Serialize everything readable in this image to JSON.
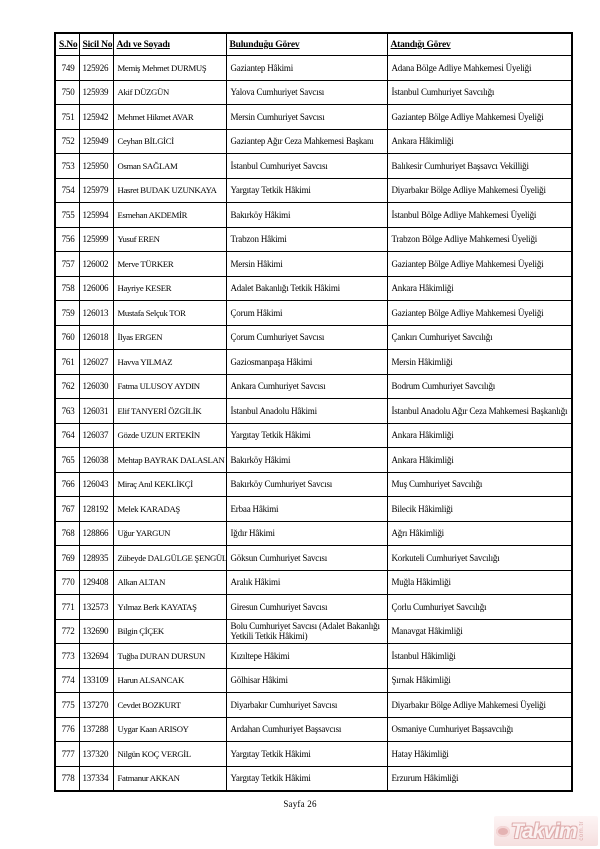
{
  "table": {
    "headers": [
      "S.No",
      "Sicil No",
      "Adı ve Soyadı",
      "Bulunduğu Görev",
      "Atandığı Görev"
    ],
    "rows": [
      {
        "sno": "749",
        "sicil": "125926",
        "name": "Memiş Mehmet DURMUŞ",
        "current": "Gaziantep Hâkimi",
        "appointed": "Adana Bölge Adliye Mahkemesi Üyeliği"
      },
      {
        "sno": "750",
        "sicil": "125939",
        "name": "Akif DÜZGÜN",
        "current": "Yalova Cumhuriyet Savcısı",
        "appointed": "İstanbul Cumhuriyet Savcılığı"
      },
      {
        "sno": "751",
        "sicil": "125942",
        "name": "Mehmet Hikmet AVAR",
        "current": "Mersin Cumhuriyet Savcısı",
        "appointed": "Gaziantep Bölge Adliye Mahkemesi Üyeliği"
      },
      {
        "sno": "752",
        "sicil": "125949",
        "name": "Ceyhan BİLGİCİ",
        "current": "Gaziantep Ağır Ceza Mahkemesi Başkanı",
        "appointed": "Ankara Hâkimliği"
      },
      {
        "sno": "753",
        "sicil": "125950",
        "name": "Osman SAĞLAM",
        "current": "İstanbul Cumhuriyet Savcısı",
        "appointed": "Balıkesir Cumhuriyet Başsavcı Vekilliği"
      },
      {
        "sno": "754",
        "sicil": "125979",
        "name": "Hasret BUDAK UZUNKAYA",
        "current": "Yargıtay Tetkik Hâkimi",
        "appointed": "Diyarbakır Bölge Adliye Mahkemesi Üyeliği"
      },
      {
        "sno": "755",
        "sicil": "125994",
        "name": "Esmehan AKDEMİR",
        "current": "Bakırköy Hâkimi",
        "appointed": "İstanbul Bölge Adliye Mahkemesi Üyeliği"
      },
      {
        "sno": "756",
        "sicil": "125999",
        "name": "Yusuf EREN",
        "current": "Trabzon Hâkimi",
        "appointed": "Trabzon Bölge Adliye Mahkemesi Üyeliği"
      },
      {
        "sno": "757",
        "sicil": "126002",
        "name": "Merve TÜRKER",
        "current": "Mersin Hâkimi",
        "appointed": "Gaziantep Bölge Adliye Mahkemesi Üyeliği"
      },
      {
        "sno": "758",
        "sicil": "126006",
        "name": "Hayriye KESER",
        "current": "Adalet Bakanlığı Tetkik Hâkimi",
        "appointed": "Ankara Hâkimliği"
      },
      {
        "sno": "759",
        "sicil": "126013",
        "name": "Mustafa Selçuk TOR",
        "current": "Çorum Hâkimi",
        "appointed": "Gaziantep Bölge Adliye Mahkemesi Üyeliği"
      },
      {
        "sno": "760",
        "sicil": "126018",
        "name": "İlyas ERGEN",
        "current": "Çorum Cumhuriyet Savcısı",
        "appointed": "Çankırı Cumhuriyet Savcılığı"
      },
      {
        "sno": "761",
        "sicil": "126027",
        "name": "Havva YILMAZ",
        "current": "Gaziosmanpaşa Hâkimi",
        "appointed": "Mersin Hâkimliği"
      },
      {
        "sno": "762",
        "sicil": "126030",
        "name": "Fatma ULUSOY AYDIN",
        "current": "Ankara Cumhuriyet Savcısı",
        "appointed": "Bodrum Cumhuriyet Savcılığı"
      },
      {
        "sno": "763",
        "sicil": "126031",
        "name": "Elif TANYERİ ÖZGİLİK",
        "current": "İstanbul Anadolu Hâkimi",
        "appointed": "İstanbul Anadolu Ağır Ceza Mahkemesi Başkanlığı"
      },
      {
        "sno": "764",
        "sicil": "126037",
        "name": "Gözde UZUN ERTEKİN",
        "current": "Yargıtay Tetkik Hâkimi",
        "appointed": "Ankara Hâkimliği"
      },
      {
        "sno": "765",
        "sicil": "126038",
        "name": "Mehtap BAYRAK DALASLAN",
        "current": "Bakırköy Hâkimi",
        "appointed": "Ankara Hâkimliği"
      },
      {
        "sno": "766",
        "sicil": "126043",
        "name": "Miraç Anıl KEKLİKÇİ",
        "current": "Bakırköy Cumhuriyet Savcısı",
        "appointed": "Muş Cumhuriyet Savcılığı"
      },
      {
        "sno": "767",
        "sicil": "128192",
        "name": "Melek KARADAŞ",
        "current": "Erbaa Hâkimi",
        "appointed": "Bilecik Hâkimliği"
      },
      {
        "sno": "768",
        "sicil": "128866",
        "name": "Uğur YARGUN",
        "current": "Iğdır Hâkimi",
        "appointed": "Ağrı Hâkimliği"
      },
      {
        "sno": "769",
        "sicil": "128935",
        "name": "Zübeyde DALGÜLGE ŞENGÜL",
        "current": "Göksun Cumhuriyet Savcısı",
        "appointed": "Korkuteli Cumhuriyet Savcılığı"
      },
      {
        "sno": "770",
        "sicil": "129408",
        "name": "Alkan ALTAN",
        "current": "Aralık Hâkimi",
        "appointed": "Muğla Hâkimliği"
      },
      {
        "sno": "771",
        "sicil": "132573",
        "name": "Yılmaz Berk KAYATAŞ",
        "current": "Giresun Cumhuriyet Savcısı",
        "appointed": "Çorlu Cumhuriyet Savcılığı"
      },
      {
        "sno": "772",
        "sicil": "132690",
        "name": "Bilgin ÇİÇEK",
        "current": "Bolu Cumhuriyet Savcısı (Adalet Bakanlığı Yetkili Tetkik Hâkimi)",
        "appointed": "Manavgat Hâkimliği"
      },
      {
        "sno": "773",
        "sicil": "132694",
        "name": "Tuğba DURAN DURSUN",
        "current": "Kızıltepe Hâkimi",
        "appointed": "İstanbul Hâkimliği"
      },
      {
        "sno": "774",
        "sicil": "133109",
        "name": "Harun ALSANCAK",
        "current": "Gölhisar Hâkimi",
        "appointed": "Şırnak Hâkimliği"
      },
      {
        "sno": "775",
        "sicil": "137270",
        "name": "Cevdet BOZKURT",
        "current": "Diyarbakır Cumhuriyet Savcısı",
        "appointed": "Diyarbakır Bölge Adliye Mahkemesi Üyeliği"
      },
      {
        "sno": "776",
        "sicil": "137288",
        "name": "Uygar Kaan ARISOY",
        "current": "Ardahan Cumhuriyet Başsavcısı",
        "appointed": "Osmaniye Cumhuriyet Başsavcılığı"
      },
      {
        "sno": "777",
        "sicil": "137320",
        "name": "Nilgün KOÇ VERGİL",
        "current": "Yargıtay Tetkik Hâkimi",
        "appointed": "Hatay Hâkimliği"
      },
      {
        "sno": "778",
        "sicil": "137334",
        "name": "Fatmanur AKKAN",
        "current": "Yargıtay Tetkik Hâkimi",
        "appointed": "Erzurum Hâkimliği"
      }
    ]
  },
  "footer": {
    "page_label": "Sayfa 26"
  },
  "watermark": {
    "brand": "Takvim",
    "suffix": "com.tr",
    "accent_color": "#dcа6a6"
  }
}
